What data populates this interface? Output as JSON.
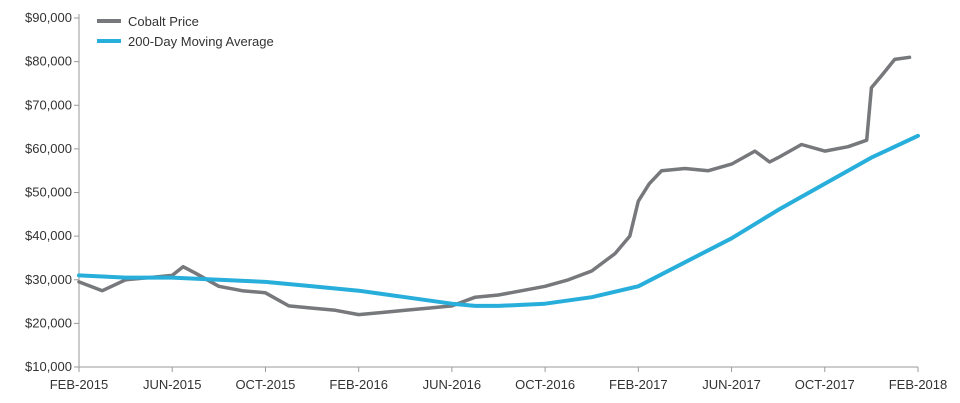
{
  "chart_data": {
    "type": "line",
    "title": "",
    "xlabel": "",
    "ylabel": "",
    "ylim": [
      10000,
      90000
    ],
    "xlim": [
      "2015-02",
      "2018-02"
    ],
    "grid": false,
    "legend_position": "top-left",
    "y_ticks": [
      {
        "value": 90000,
        "label": "$90,000"
      },
      {
        "value": 80000,
        "label": "$80,000"
      },
      {
        "value": 70000,
        "label": "$70,000"
      },
      {
        "value": 60000,
        "label": "$60,000"
      },
      {
        "value": 50000,
        "label": "$50,000"
      },
      {
        "value": 40000,
        "label": "$40,000"
      },
      {
        "value": 30000,
        "label": "$30,000"
      },
      {
        "value": 20000,
        "label": "$20,000"
      },
      {
        "value": 10000,
        "label": "$10,000"
      }
    ],
    "x_ticks": [
      {
        "value": "2015-02",
        "label": "FEB-2015"
      },
      {
        "value": "2015-06",
        "label": "JUN-2015"
      },
      {
        "value": "2015-10",
        "label": "OCT-2015"
      },
      {
        "value": "2016-02",
        "label": "FEB-2016"
      },
      {
        "value": "2016-06",
        "label": "JUN-2016"
      },
      {
        "value": "2016-10",
        "label": "OCT-2016"
      },
      {
        "value": "2017-02",
        "label": "FEB-2017"
      },
      {
        "value": "2017-06",
        "label": "JUN-2017"
      },
      {
        "value": "2017-10",
        "label": "OCT-2017"
      },
      {
        "value": "2018-02",
        "label": "FEB-2018"
      }
    ],
    "series": [
      {
        "name": "Cobalt Price",
        "color": "#77787b",
        "points": [
          [
            "2015-02",
            29500
          ],
          [
            "2015-03",
            27500
          ],
          [
            "2015-04",
            30000
          ],
          [
            "2015-05",
            30500
          ],
          [
            "2015-06",
            31000
          ],
          [
            "2015-06-15",
            33000
          ],
          [
            "2015-07",
            31500
          ],
          [
            "2015-08",
            28500
          ],
          [
            "2015-09",
            27500
          ],
          [
            "2015-10",
            27000
          ],
          [
            "2015-11",
            24000
          ],
          [
            "2015-12",
            23500
          ],
          [
            "2016-01",
            23000
          ],
          [
            "2016-02",
            22000
          ],
          [
            "2016-03",
            22500
          ],
          [
            "2016-04",
            23000
          ],
          [
            "2016-05",
            23500
          ],
          [
            "2016-06",
            24000
          ],
          [
            "2016-07",
            26000
          ],
          [
            "2016-08",
            26500
          ],
          [
            "2016-09",
            27500
          ],
          [
            "2016-10",
            28500
          ],
          [
            "2016-11",
            30000
          ],
          [
            "2016-12",
            32000
          ],
          [
            "2017-01",
            36000
          ],
          [
            "2017-01-20",
            40000
          ],
          [
            "2017-02",
            48000
          ],
          [
            "2017-02-15",
            52000
          ],
          [
            "2017-03",
            55000
          ],
          [
            "2017-04",
            55500
          ],
          [
            "2017-05",
            55000
          ],
          [
            "2017-06",
            56500
          ],
          [
            "2017-07",
            59500
          ],
          [
            "2017-07-20",
            57000
          ],
          [
            "2017-08",
            58000
          ],
          [
            "2017-09",
            61000
          ],
          [
            "2017-10",
            59500
          ],
          [
            "2017-11",
            60500
          ],
          [
            "2017-11-25",
            62000
          ],
          [
            "2017-12",
            74000
          ],
          [
            "2017-12-15",
            77000
          ],
          [
            "2018-01",
            80500
          ],
          [
            "2018-01-20",
            81000
          ]
        ]
      },
      {
        "name": "200-Day Moving Average",
        "color": "#27aedb",
        "points": [
          [
            "2015-02",
            31000
          ],
          [
            "2015-04",
            30500
          ],
          [
            "2015-06",
            30500
          ],
          [
            "2015-08",
            30000
          ],
          [
            "2015-10",
            29500
          ],
          [
            "2015-12",
            28500
          ],
          [
            "2016-02",
            27500
          ],
          [
            "2016-04",
            26000
          ],
          [
            "2016-06",
            24500
          ],
          [
            "2016-07",
            24000
          ],
          [
            "2016-08",
            24000
          ],
          [
            "2016-10",
            24500
          ],
          [
            "2016-12",
            26000
          ],
          [
            "2017-02",
            28500
          ],
          [
            "2017-04",
            34000
          ],
          [
            "2017-06",
            39500
          ],
          [
            "2017-08",
            46000
          ],
          [
            "2017-10",
            52000
          ],
          [
            "2017-12",
            58000
          ],
          [
            "2018-02",
            63000
          ]
        ]
      }
    ]
  }
}
